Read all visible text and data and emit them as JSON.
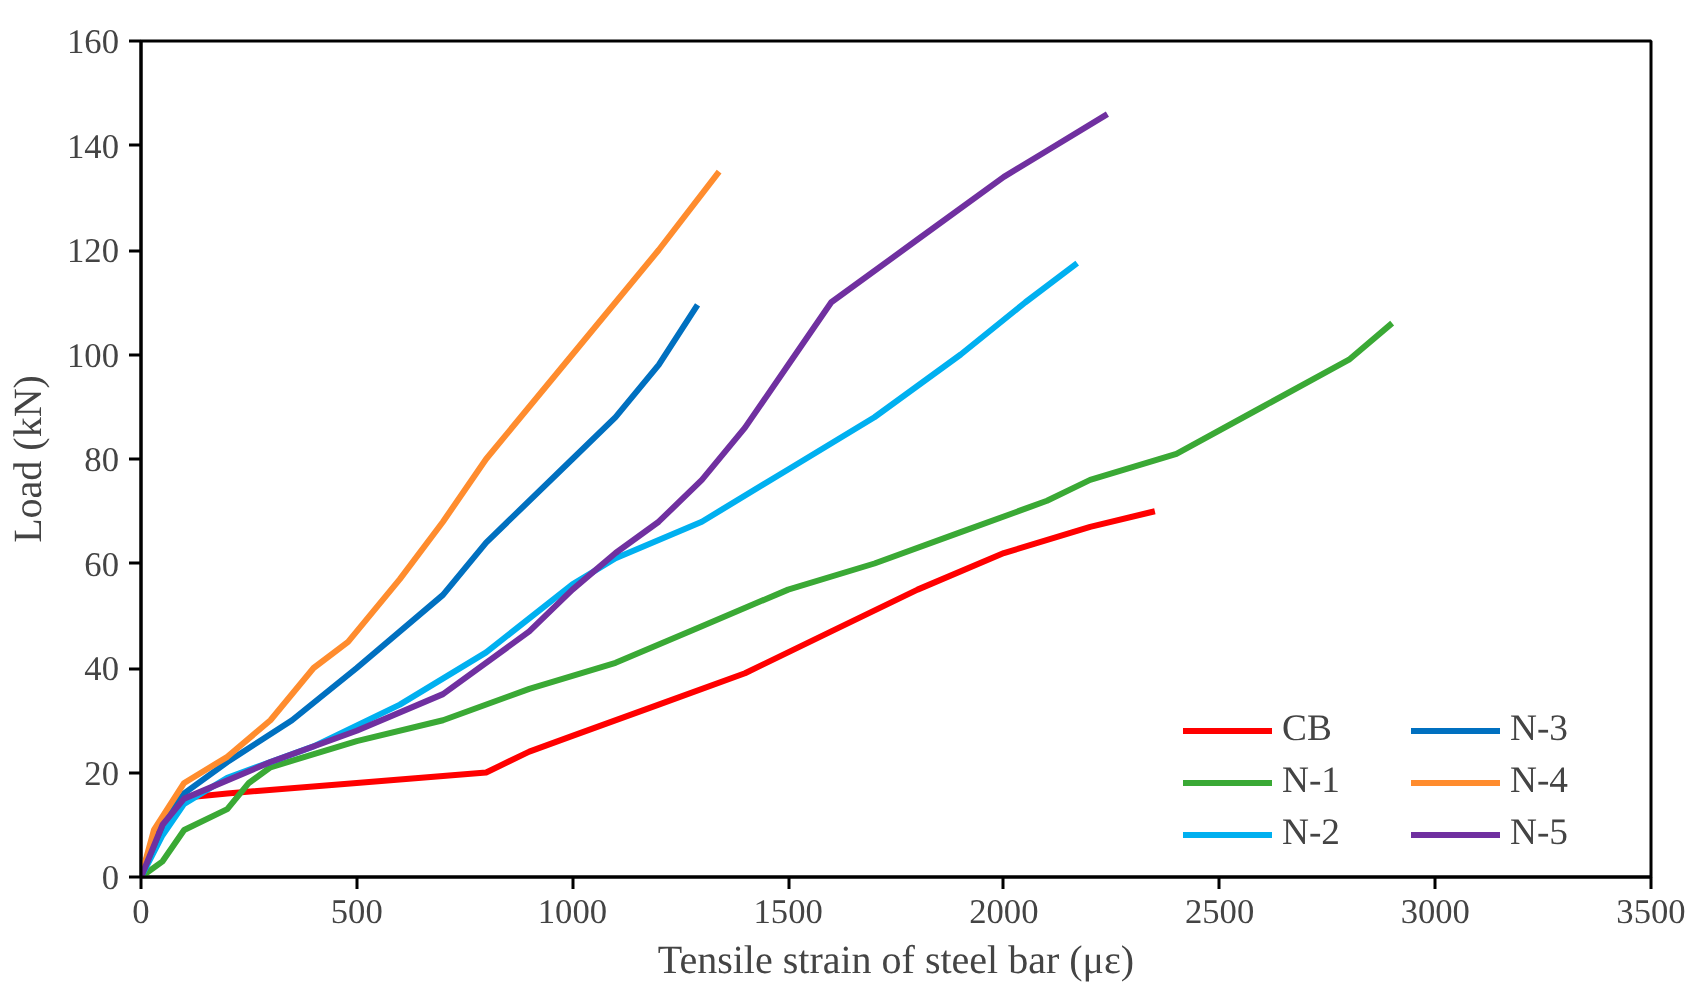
{
  "chart_data": {
    "type": "line",
    "xlabel": "Tensile strain of steel bar (με)",
    "ylabel": "Load (kN)",
    "xlim": [
      0,
      3500
    ],
    "ylim": [
      0,
      160
    ],
    "xticks": [
      0,
      500,
      1000,
      1500,
      2000,
      2500,
      3000,
      3500
    ],
    "yticks": [
      0,
      20,
      40,
      60,
      80,
      100,
      120,
      140,
      160
    ],
    "grid": false,
    "legend": "bottom right",
    "line_style": "solid",
    "marker": "none",
    "series": [
      {
        "name": "CB",
        "color": "#ff0000",
        "x": [
          0,
          30,
          80,
          200,
          500,
          800,
          900,
          1000,
          1200,
          1400,
          1600,
          1800,
          2000,
          2200,
          2350
        ],
        "values": [
          0,
          8,
          15,
          16,
          18,
          20,
          24,
          27,
          33,
          39,
          47,
          55,
          62,
          67,
          70
        ]
      },
      {
        "name": "N-1",
        "color": "#3aa935",
        "x": [
          0,
          50,
          100,
          200,
          250,
          300,
          500,
          700,
          900,
          1100,
          1300,
          1500,
          1700,
          1900,
          2100,
          2200,
          2400,
          2600,
          2800,
          2900
        ],
        "values": [
          0,
          3,
          9,
          13,
          18,
          21,
          26,
          30,
          36,
          41,
          48,
          55,
          60,
          66,
          72,
          76,
          81,
          90,
          99,
          106
        ]
      },
      {
        "name": "N-2",
        "color": "#00b0f0",
        "x": [
          0,
          50,
          100,
          200,
          400,
          600,
          800,
          1000,
          1100,
          1300,
          1500,
          1700,
          1900,
          2050,
          2170
        ],
        "values": [
          0,
          8,
          14,
          19,
          25,
          33,
          43,
          56,
          61,
          68,
          78,
          88,
          100,
          110,
          117.5
        ]
      },
      {
        "name": "N-3",
        "color": "#0070c0",
        "x": [
          0,
          50,
          100,
          200,
          350,
          500,
          700,
          800,
          1000,
          1100,
          1200,
          1290
        ],
        "values": [
          0,
          10,
          16,
          22,
          30,
          40,
          54,
          64,
          80,
          88,
          98,
          109.5
        ]
      },
      {
        "name": "N-4",
        "color": "#ff8c2e",
        "x": [
          0,
          30,
          100,
          200,
          300,
          400,
          480,
          600,
          700,
          800,
          1000,
          1200,
          1340
        ],
        "values": [
          0,
          9,
          18,
          23,
          30,
          40,
          45,
          57,
          68,
          80,
          100,
          120,
          135
        ]
      },
      {
        "name": "N-5",
        "color": "#7030a0",
        "x": [
          0,
          50,
          100,
          300,
          500,
          700,
          900,
          1000,
          1100,
          1200,
          1300,
          1400,
          1500,
          1600,
          1800,
          2000,
          2100,
          2240
        ],
        "values": [
          0,
          10,
          15,
          22,
          28,
          35,
          47,
          55,
          62,
          68,
          76,
          86,
          98,
          110,
          122,
          134,
          139,
          146
        ]
      }
    ]
  }
}
